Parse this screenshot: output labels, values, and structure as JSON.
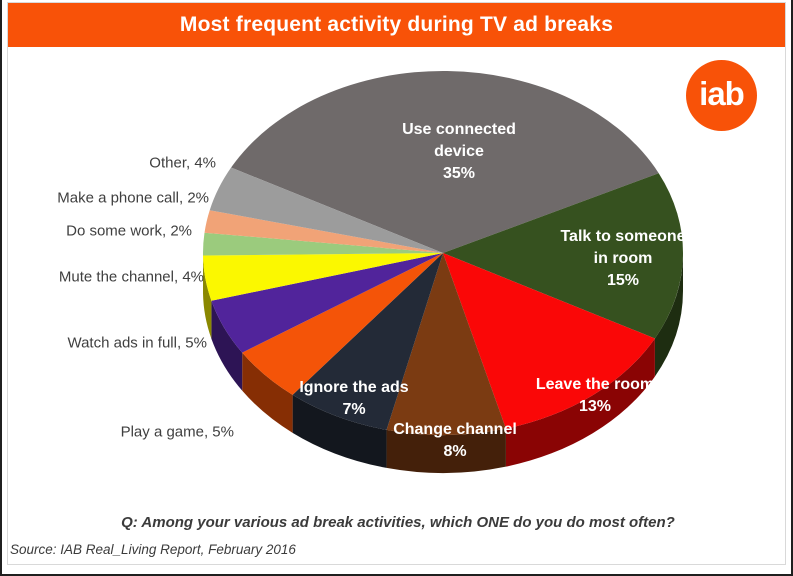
{
  "header": {
    "bg_color": "#F85208",
    "text_color": "#FFFFFF"
  },
  "logo": {
    "text": "iab",
    "bg_color": "#F85208",
    "text_color": "#FFFFFF"
  },
  "colors": {
    "label_text": "#3F3F3F",
    "inside_label_text": "#FFFFFF",
    "frame_border": "#D9D9D9",
    "page_border": "#1F1F1F",
    "background": "#FFFFFF"
  },
  "chart_data": {
    "type": "pie",
    "effect": "3d",
    "direction": "clockwise",
    "start_angle_deg": -62,
    "total": 100,
    "title": "Most frequent activity during TV ad breaks",
    "question": "Q: Among your various ad break activities, which ONE do you do most often?",
    "source": "Source: IAB Real_Living Report, February 2016",
    "slices": [
      {
        "label": "Use connected device",
        "value": 35,
        "pct_label": "35%",
        "color": "#6F6A6A",
        "label_style": "inside",
        "label_lines": [
          "Use connected",
          "device",
          "35%"
        ]
      },
      {
        "label": "Talk to someone in room",
        "value": 15,
        "pct_label": "15%",
        "color": "#36511F",
        "label_style": "inside",
        "label_lines": [
          "Talk to someone",
          "in room",
          "15%"
        ]
      },
      {
        "label": "Leave the room",
        "value": 13,
        "pct_label": "13%",
        "color": "#FA0707",
        "label_style": "inside",
        "label_lines": [
          "Leave the room",
          "13%"
        ]
      },
      {
        "label": "Change channel",
        "value": 8,
        "pct_label": "8%",
        "color": "#7B3B12",
        "label_style": "inside",
        "label_lines": [
          "Change channel",
          "8%"
        ]
      },
      {
        "label": "Ignore the ads",
        "value": 7,
        "pct_label": "7%",
        "color": "#232A37",
        "label_style": "inside",
        "label_lines": [
          "Ignore the ads",
          "7%"
        ]
      },
      {
        "label": "Play a game",
        "value": 5,
        "pct_label": "5%",
        "color": "#F45408",
        "label_style": "outside",
        "label_text": "Play a game, 5%"
      },
      {
        "label": "Watch ads in full",
        "value": 5,
        "pct_label": "5%",
        "color": "#51249B",
        "label_style": "outside",
        "label_text": "Watch ads in full, 5%"
      },
      {
        "label": "Mute the channel",
        "value": 4,
        "pct_label": "4%",
        "color": "#FBF800",
        "label_style": "outside",
        "label_text": "Mute the channel, 4%"
      },
      {
        "label": "Do some work",
        "value": 2,
        "pct_label": "2%",
        "color": "#9BCB7D",
        "label_style": "outside",
        "label_text": "Do some work, 2%"
      },
      {
        "label": "Make a phone call",
        "value": 2,
        "pct_label": "2%",
        "color": "#F1A377",
        "label_style": "outside",
        "label_text": "Make a phone call, 2%"
      },
      {
        "label": "Other",
        "value": 4,
        "pct_label": "4%",
        "color": "#9C9C9C",
        "label_style": "outside",
        "label_text": "Other, 4%"
      }
    ]
  }
}
